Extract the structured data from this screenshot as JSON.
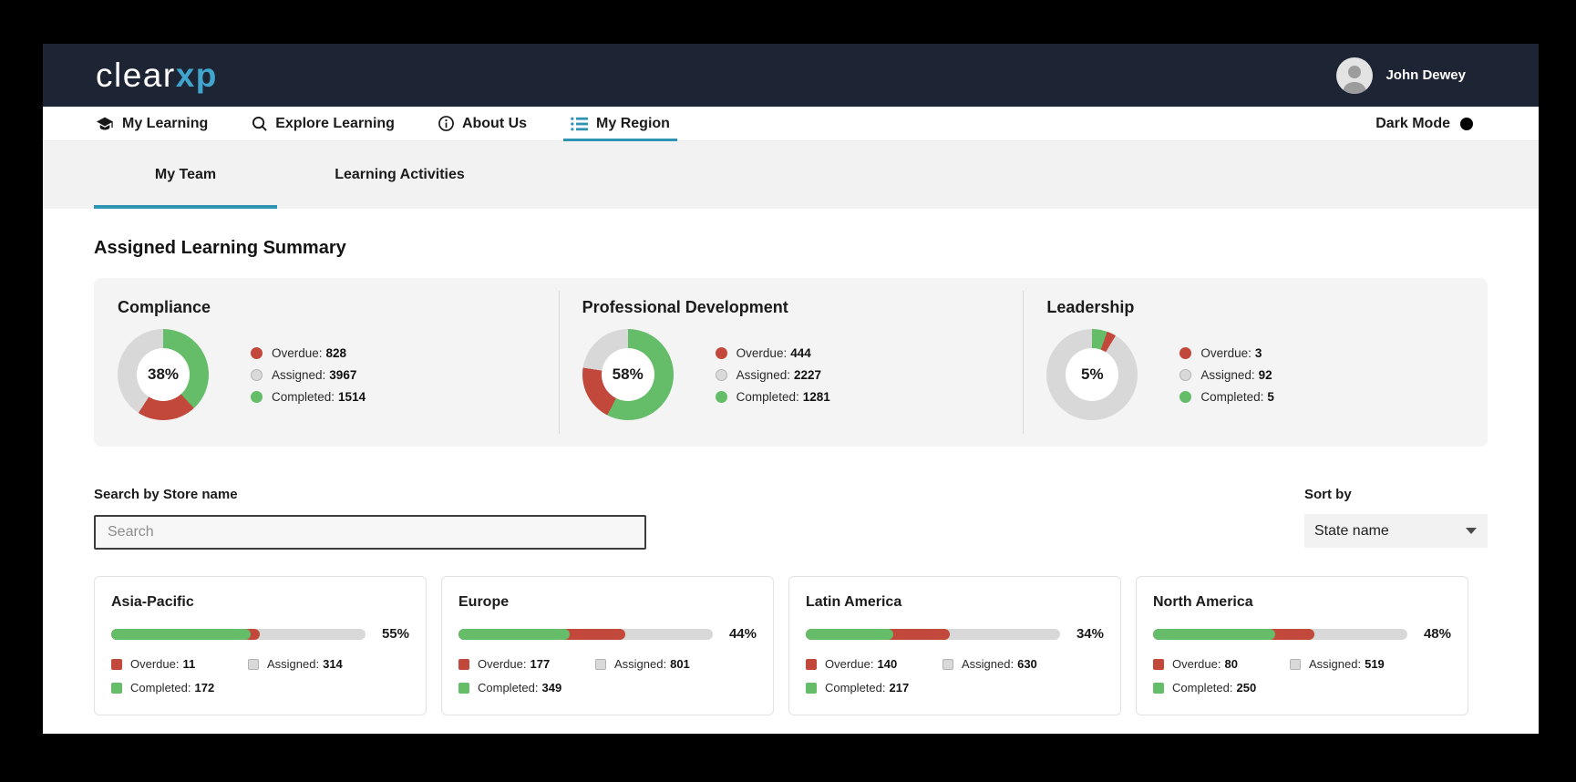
{
  "header": {
    "logo_clear": "clear",
    "logo_xp": "xp",
    "user_name": "John Dewey"
  },
  "nav": {
    "items": [
      {
        "label": "My Learning",
        "icon": "graduation-cap",
        "active": false
      },
      {
        "label": "Explore Learning",
        "icon": "search",
        "active": false
      },
      {
        "label": "About Us",
        "icon": "info",
        "active": false
      },
      {
        "label": "My Region",
        "icon": "list",
        "active": true
      }
    ],
    "dark_mode_label": "Dark Mode"
  },
  "tabs": [
    {
      "label": "My Team",
      "active": true
    },
    {
      "label": "Learning Activities",
      "active": false
    }
  ],
  "page": {
    "section_title": "Assigned Learning Summary",
    "search_label": "Search by Store name",
    "search_placeholder": "Search",
    "sort_label": "Sort by",
    "sort_value": "State name"
  },
  "summary": {
    "categories": [
      {
        "title": "Compliance",
        "pct_label": "38%",
        "completed_pct": 38.2,
        "overdue_pct": 20.9,
        "legend": [
          {
            "label": "Overdue:",
            "value": "828"
          },
          {
            "label": "Assigned:",
            "value": "3967"
          },
          {
            "label": "Completed:",
            "value": "1514"
          }
        ]
      },
      {
        "title": "Professional Development",
        "pct_label": "58%",
        "completed_pct": 57.5,
        "overdue_pct": 19.9,
        "legend": [
          {
            "label": "Overdue:",
            "value": "444"
          },
          {
            "label": "Assigned:",
            "value": "2227"
          },
          {
            "label": "Completed:",
            "value": "1281"
          }
        ]
      },
      {
        "title": "Leadership",
        "pct_label": "5%",
        "completed_pct": 5.4,
        "overdue_pct": 3.3,
        "legend": [
          {
            "label": "Overdue:",
            "value": "3"
          },
          {
            "label": "Assigned:",
            "value": "92"
          },
          {
            "label": "Completed:",
            "value": "5"
          }
        ]
      }
    ]
  },
  "regions": [
    {
      "name": "Asia-Pacific",
      "pct_label": "55%",
      "completed_pct": 54.8,
      "overdue_pct": 3.5,
      "legend": [
        {
          "label": "Overdue:",
          "value": "11"
        },
        {
          "label": "Assigned:",
          "value": "314"
        },
        {
          "label": "Completed:",
          "value": "172"
        }
      ]
    },
    {
      "name": "Europe",
      "pct_label": "44%",
      "completed_pct": 43.6,
      "overdue_pct": 22.1,
      "legend": [
        {
          "label": "Overdue:",
          "value": "177"
        },
        {
          "label": "Assigned:",
          "value": "801"
        },
        {
          "label": "Completed:",
          "value": "349"
        }
      ]
    },
    {
      "name": "Latin America",
      "pct_label": "34%",
      "completed_pct": 34.4,
      "overdue_pct": 22.2,
      "legend": [
        {
          "label": "Overdue:",
          "value": "140"
        },
        {
          "label": "Assigned:",
          "value": "630"
        },
        {
          "label": "Completed:",
          "value": "217"
        }
      ]
    },
    {
      "name": "North America",
      "pct_label": "48%",
      "completed_pct": 48.2,
      "overdue_pct": 15.4,
      "legend": [
        {
          "label": "Overdue:",
          "value": "80"
        },
        {
          "label": "Assigned:",
          "value": "519"
        },
        {
          "label": "Completed:",
          "value": "250"
        }
      ]
    }
  ],
  "chart_data": [
    {
      "type": "pie",
      "title": "Compliance",
      "center_label": "38%",
      "categories": [
        "Overdue",
        "Assigned",
        "Completed"
      ],
      "values": [
        828,
        3967,
        1514
      ]
    },
    {
      "type": "pie",
      "title": "Professional Development",
      "center_label": "58%",
      "categories": [
        "Overdue",
        "Assigned",
        "Completed"
      ],
      "values": [
        444,
        2227,
        1281
      ]
    },
    {
      "type": "pie",
      "title": "Leadership",
      "center_label": "5%",
      "categories": [
        "Overdue",
        "Assigned",
        "Completed"
      ],
      "values": [
        3,
        92,
        5
      ]
    },
    {
      "type": "bar",
      "title": "Region completion %",
      "categories": [
        "Asia-Pacific",
        "Europe",
        "Latin America",
        "North America"
      ],
      "values": [
        55,
        44,
        34,
        48
      ]
    }
  ],
  "colors": {
    "overdue": "#c1483b",
    "assigned": "#d8d8d8",
    "completed": "#65bc69",
    "accent_teal": "#2f93b4",
    "header_bg": "#1d2433",
    "logo_blue": "#41a4cd"
  }
}
